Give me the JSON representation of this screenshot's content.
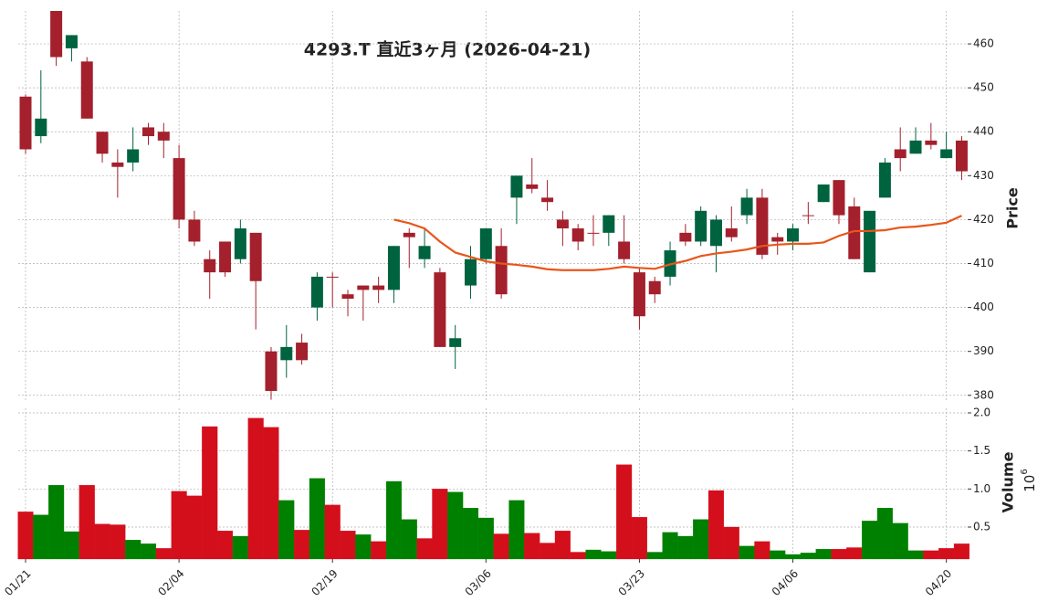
{
  "chart_data": {
    "type": "candlestick",
    "title": "4293.T  直近3ヶ月  (2026-04-21)",
    "categories": [
      "01/21",
      null,
      null,
      null,
      null,
      null,
      null,
      null,
      null,
      null,
      "02/04",
      null,
      null,
      null,
      null,
      null,
      null,
      null,
      null,
      null,
      "02/19",
      null,
      null,
      null,
      null,
      null,
      null,
      null,
      null,
      null,
      "03/06",
      null,
      null,
      null,
      null,
      null,
      null,
      null,
      null,
      null,
      "03/23",
      null,
      null,
      null,
      null,
      null,
      null,
      null,
      null,
      null,
      "04/06",
      null,
      null,
      null,
      null,
      null,
      null,
      null,
      null,
      null,
      "04/20",
      null
    ],
    "open": [
      448,
      439,
      468,
      459,
      456,
      440,
      433,
      433,
      441,
      440,
      434,
      420,
      411,
      415,
      411,
      417,
      390,
      388,
      392,
      400,
      407,
      403,
      405,
      405,
      404,
      417,
      411,
      408,
      391,
      405,
      411,
      414,
      425,
      428,
      425,
      420,
      418,
      417,
      417,
      415,
      408,
      406,
      407,
      417,
      415,
      414,
      418,
      421,
      425,
      416,
      415,
      421,
      424,
      429,
      423,
      408,
      425,
      436,
      435,
      438,
      434,
      438
    ],
    "high": [
      448.5,
      454,
      470,
      462,
      457,
      440,
      436,
      441,
      442,
      442,
      437,
      422,
      413,
      415,
      420,
      417,
      391,
      396,
      394,
      408,
      408,
      404,
      405,
      407,
      414,
      418,
      418,
      409,
      396,
      414,
      418,
      418,
      430,
      434,
      429,
      422,
      419,
      421,
      421,
      421,
      409,
      407,
      415,
      419,
      423,
      421,
      423,
      427,
      427,
      417,
      419,
      424,
      428,
      429,
      425,
      422,
      434,
      441,
      441,
      442,
      440,
      439
    ],
    "low": [
      435,
      437.4,
      455,
      456,
      443,
      433,
      425,
      431,
      437,
      434,
      418,
      414,
      402,
      407,
      410,
      395,
      379,
      384,
      387,
      397,
      400,
      398,
      397,
      401,
      401,
      409,
      409,
      391,
      386,
      402,
      410,
      402,
      419,
      426,
      422,
      414,
      413,
      414,
      414,
      410,
      395,
      401,
      405,
      414,
      414,
      408,
      415,
      419,
      411,
      412,
      413,
      419,
      424,
      419,
      411,
      408,
      425,
      431,
      435,
      436,
      434,
      429
    ],
    "close": [
      436,
      443,
      457,
      462,
      443,
      435,
      432,
      436,
      439,
      438,
      420,
      415,
      408,
      408,
      418,
      406,
      381,
      391,
      388,
      407,
      406.8,
      402,
      404,
      404,
      414,
      416,
      414,
      391,
      393,
      411,
      418,
      403,
      430,
      427,
      424,
      418,
      415,
      416.8,
      421,
      411,
      398,
      403,
      413,
      415,
      422,
      420,
      416,
      425,
      412,
      415,
      418,
      420.8,
      428,
      421,
      411,
      422,
      433,
      434,
      438,
      437,
      436,
      431
    ],
    "up_color": "#006340",
    "down_color": "#a3202c",
    "moving_average": {
      "color": "#e8561a",
      "values": [
        null,
        null,
        null,
        null,
        null,
        null,
        null,
        null,
        null,
        null,
        null,
        null,
        null,
        null,
        null,
        null,
        null,
        null,
        null,
        null,
        null,
        null,
        null,
        null,
        420,
        419.2,
        418,
        415,
        412.5,
        411.5,
        410.5,
        410,
        409.7,
        409.3,
        408.7,
        408.5,
        408.5,
        408.5,
        408.8,
        409.3,
        409,
        408.8,
        409.8,
        410.6,
        411.7,
        412.3,
        412.7,
        413.2,
        414,
        414.3,
        414.5,
        414.5,
        414.8,
        416.3,
        417.4,
        417.4,
        417.6,
        418.2,
        418.4,
        418.8,
        419.3,
        420.9
      ]
    },
    "ylabel": "Price",
    "ylim": [
      378.5,
      467.5
    ],
    "yticks": [
      380,
      390,
      400,
      410,
      420,
      430,
      440,
      450,
      460
    ],
    "grid": true,
    "volume": {
      "ylabel": "Volume",
      "offset_base": "10",
      "offset_exponent": "6",
      "values": [
        0.7,
        0.66,
        1.05,
        0.44,
        1.05,
        0.54,
        0.53,
        0.33,
        0.28,
        0.22,
        0.97,
        0.91,
        1.82,
        0.45,
        0.38,
        1.93,
        1.81,
        0.85,
        0.46,
        1.14,
        0.79,
        0.45,
        0.4,
        0.31,
        1.1,
        0.6,
        0.35,
        1.0,
        0.96,
        0.75,
        0.62,
        0.41,
        0.85,
        0.42,
        0.29,
        0.45,
        0.17,
        0.2,
        0.18,
        1.32,
        0.63,
        0.17,
        0.43,
        0.38,
        0.6,
        0.98,
        0.5,
        0.25,
        0.31,
        0.19,
        0.14,
        0.16,
        0.21,
        0.21,
        0.23,
        0.58,
        0.75,
        0.55,
        0.19,
        0.19,
        0.22,
        0.28
      ],
      "colors": [
        "#d40f1c",
        "#008000",
        "#008000",
        "#008000",
        "#d40f1c",
        "#d40f1c",
        "#d40f1c",
        "#008000",
        "#008000",
        "#d40f1c",
        "#d40f1c",
        "#d40f1c",
        "#d40f1c",
        "#d40f1c",
        "#008000",
        "#d40f1c",
        "#d40f1c",
        "#008000",
        "#d40f1c",
        "#008000",
        "#d40f1c",
        "#d40f1c",
        "#008000",
        "#d40f1c",
        "#008000",
        "#008000",
        "#d40f1c",
        "#d40f1c",
        "#008000",
        "#008000",
        "#008000",
        "#d40f1c",
        "#008000",
        "#d40f1c",
        "#d40f1c",
        "#d40f1c",
        "#d40f1c",
        "#008000",
        "#008000",
        "#d40f1c",
        "#d40f1c",
        "#008000",
        "#008000",
        "#008000",
        "#008000",
        "#d40f1c",
        "#d40f1c",
        "#008000",
        "#d40f1c",
        "#008000",
        "#008000",
        "#008000",
        "#008000",
        "#d40f1c",
        "#d40f1c",
        "#008000",
        "#008000",
        "#008000",
        "#008000",
        "#d40f1c",
        "#d40f1c",
        "#d40f1c"
      ],
      "ylim": [
        0.08,
        2.06
      ],
      "yticks": [
        0.5,
        {
          "value": 1,
          "label": "1.0"
        },
        1.5,
        {
          "value": 2,
          "label": "2.0"
        }
      ]
    }
  }
}
